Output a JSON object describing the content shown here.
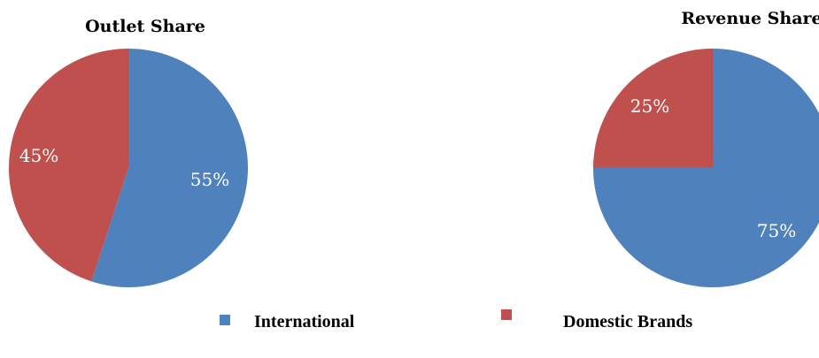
{
  "chart_data": [
    {
      "type": "pie",
      "title": "Outlet Share",
      "categories": [
        "International",
        "Domestic Brands"
      ],
      "values": [
        55,
        45
      ],
      "labels": [
        "55%",
        "45%"
      ],
      "colors": [
        "#4F81BD",
        "#C0504D"
      ]
    },
    {
      "type": "pie",
      "title": "Revenue Share",
      "categories": [
        "International",
        "Domestic Brands"
      ],
      "values": [
        75,
        25
      ],
      "labels": [
        "75%",
        "25%"
      ],
      "colors": [
        "#4F81BD",
        "#C0504D"
      ]
    }
  ],
  "legend": {
    "items": [
      {
        "label": "International",
        "color": "#4F81BD"
      },
      {
        "label": "Domestic Brands",
        "color": "#C0504D"
      }
    ],
    "placement": "bottom"
  }
}
